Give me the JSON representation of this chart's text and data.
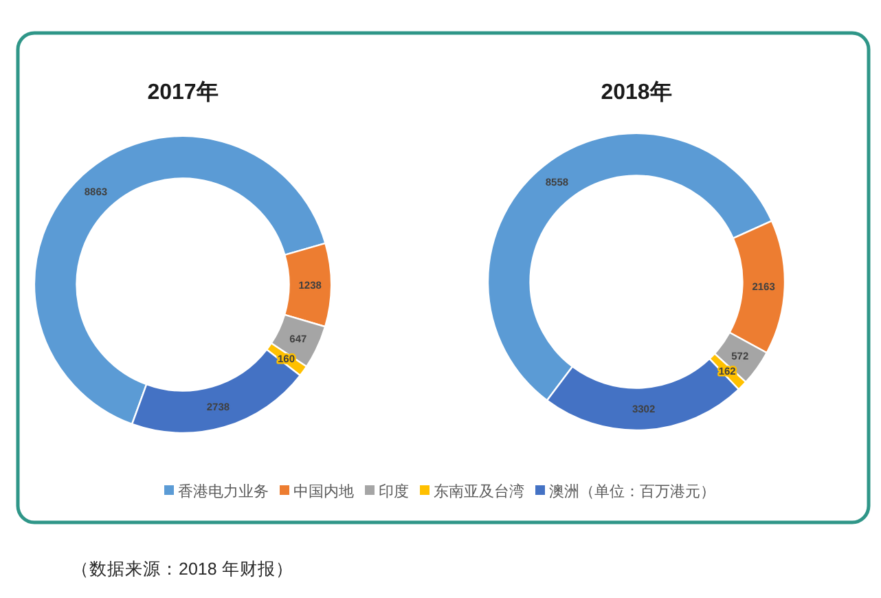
{
  "chart_data": {
    "type": "donut",
    "categories": [
      "香港电力业务",
      "中国内地",
      "印度",
      "东南亚及台湾",
      "澳洲"
    ],
    "colors": [
      "#5b9bd5",
      "#ed7d31",
      "#a5a5a5",
      "#ffc000",
      "#4472c4"
    ],
    "series": [
      {
        "name": "2017年",
        "values": [
          8863,
          1238,
          647,
          160,
          2738
        ]
      },
      {
        "name": "2018年",
        "values": [
          8558,
          2163,
          572,
          162,
          3302
        ]
      }
    ],
    "data_labels": true,
    "legend": "bottom",
    "annotations": [
      "（单位：百万港元）",
      "（数据来源：2018 年财报）"
    ]
  }
}
